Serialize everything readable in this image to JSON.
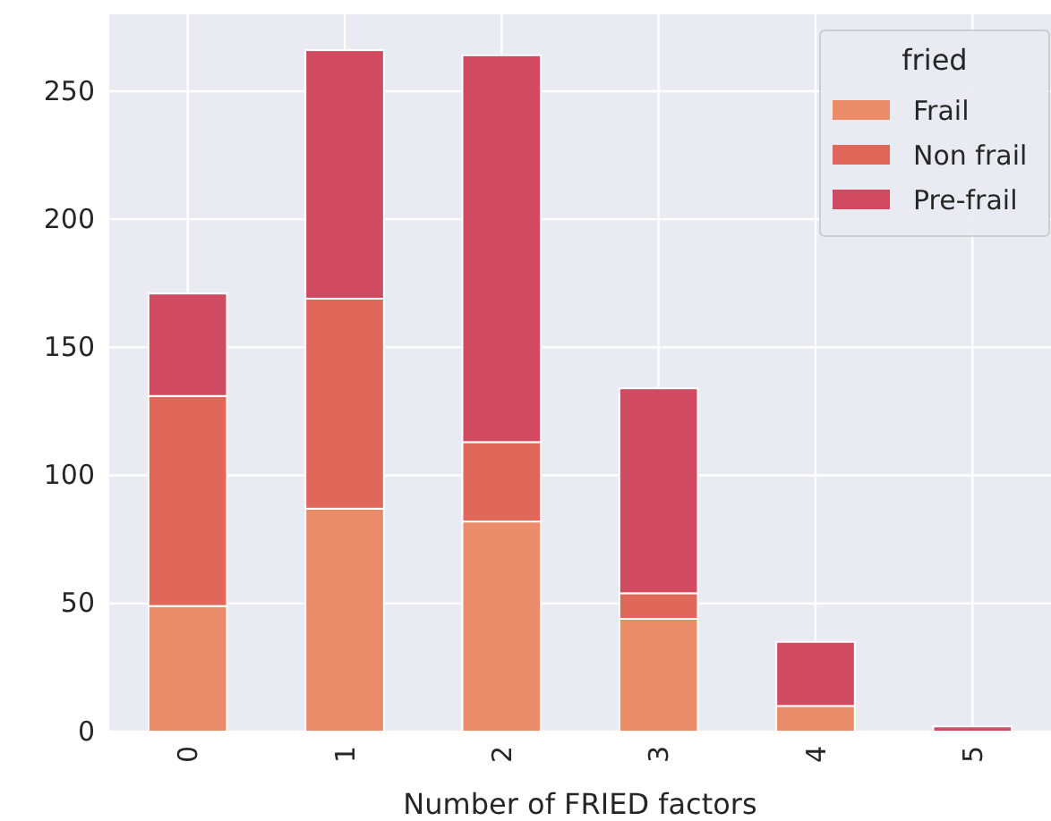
{
  "chart_data": {
    "type": "bar",
    "stacked": true,
    "xlabel": "Number of FRIED factors",
    "legend_title": "fried",
    "legend": "top right",
    "grid": true,
    "categories": [
      "0",
      "1",
      "2",
      "3",
      "4",
      "5"
    ],
    "series": [
      {
        "name": "Frail",
        "color": "#ea8c6a",
        "values": [
          49,
          87,
          82,
          44,
          10,
          0
        ]
      },
      {
        "name": "Non frail",
        "color": "#e0685a",
        "values": [
          82,
          82,
          31,
          10,
          0,
          0
        ]
      },
      {
        "name": "Pre-frail",
        "color": "#d04a62",
        "values": [
          40,
          97,
          151,
          80,
          25,
          2
        ]
      }
    ],
    "ylim": [
      0,
      280
    ],
    "yticks": [
      0,
      50,
      100,
      150,
      200,
      250
    ]
  }
}
